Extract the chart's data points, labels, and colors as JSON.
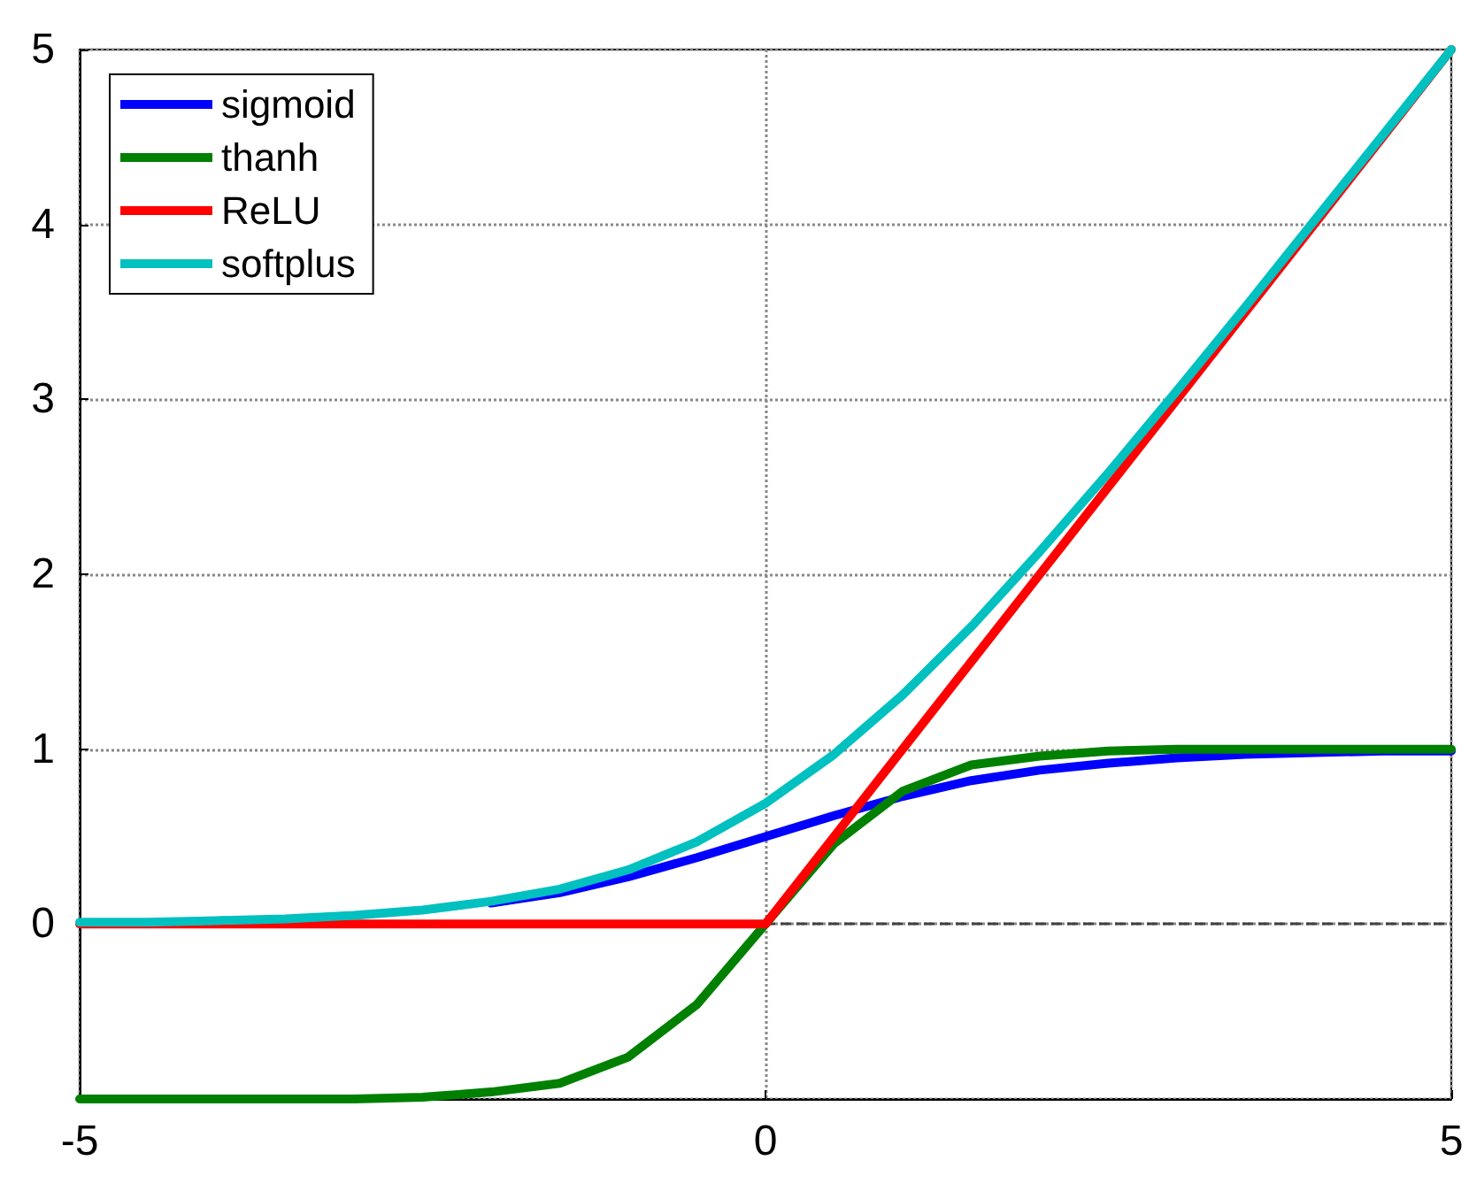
{
  "chart_data": {
    "type": "line",
    "x": [
      -5,
      -4.5,
      -4,
      -3.5,
      -3,
      -2.5,
      -2,
      -1.5,
      -1,
      -0.5,
      0,
      0.5,
      1,
      1.5,
      2,
      2.5,
      3,
      3.5,
      4,
      4.5,
      5
    ],
    "series": [
      {
        "name": "sigmoid",
        "color": "#0000ff",
        "values": [
          null,
          null,
          null,
          null,
          null,
          null,
          0.12,
          0.18,
          0.27,
          0.38,
          0.5,
          0.62,
          0.73,
          0.82,
          0.88,
          0.92,
          0.95,
          0.97,
          0.98,
          0.99,
          0.99
        ]
      },
      {
        "name": "thanh",
        "color": "#008000",
        "values": [
          -1,
          -1,
          -1,
          -1,
          -1,
          -0.99,
          -0.96,
          -0.91,
          -0.76,
          -0.46,
          0,
          0.46,
          0.76,
          0.91,
          0.96,
          0.99,
          1,
          1,
          1,
          1,
          1
        ]
      },
      {
        "name": "ReLU",
        "color": "#ff0000",
        "values": [
          0,
          0,
          0,
          0,
          0,
          0,
          0,
          0,
          0,
          0,
          0,
          0.5,
          1,
          1.5,
          2,
          2.5,
          3,
          3.5,
          4,
          4.5,
          5
        ]
      },
      {
        "name": "softplus",
        "color": "#00c0c0",
        "values": [
          0.01,
          0.01,
          0.02,
          0.03,
          0.05,
          0.08,
          0.13,
          0.2,
          0.31,
          0.47,
          0.69,
          0.97,
          1.31,
          1.7,
          2.13,
          2.58,
          3.05,
          3.53,
          4.02,
          4.51,
          5
        ]
      }
    ],
    "xlim": [
      -5,
      5
    ],
    "xticks": [
      -5,
      0,
      5
    ],
    "ylim": [
      -1,
      5
    ],
    "yticks": [
      {
        "value": -1,
        "label": null
      },
      0,
      1,
      2,
      3,
      4,
      5
    ],
    "grid": true,
    "legend": "top left",
    "line_style": "solid",
    "marker": "none",
    "ref_lines": [
      {
        "axis": "y",
        "value": 0,
        "label": null,
        "color": "#404040",
        "line_style": "dashed"
      }
    ]
  }
}
